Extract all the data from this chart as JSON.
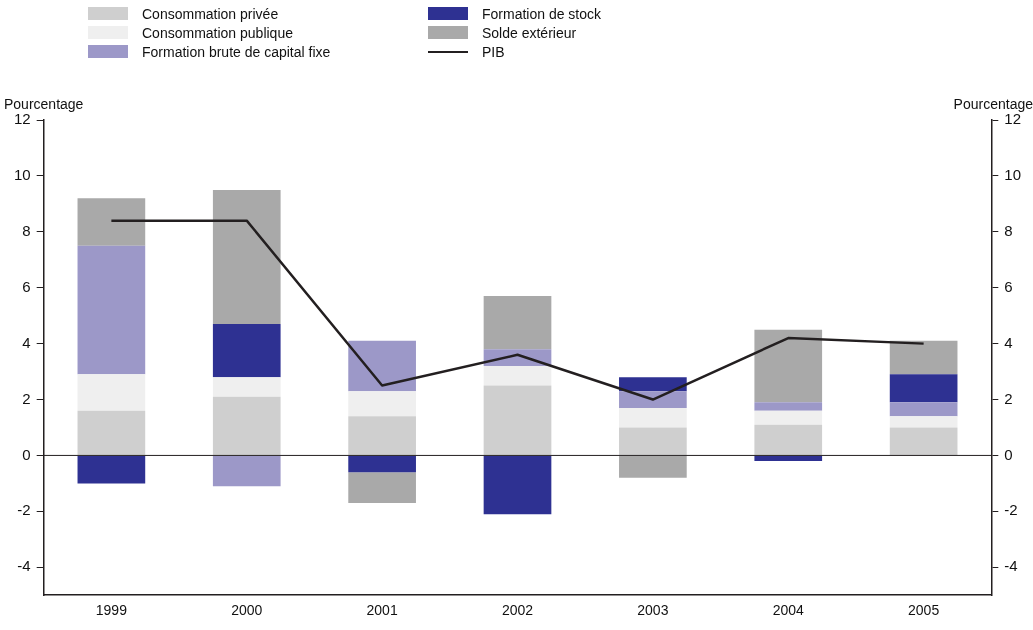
{
  "chart_data": {
    "type": "bar",
    "stacked": true,
    "categories": [
      "1999",
      "2000",
      "2001",
      "2002",
      "2003",
      "2004",
      "2005"
    ],
    "ylabel": "Pourcentage",
    "y2label": "Pourcentage",
    "ylim": [
      -5,
      12
    ],
    "yticks": [
      -4,
      -2,
      0,
      2,
      4,
      6,
      8,
      10,
      12
    ],
    "y2lim": [
      -5,
      12
    ],
    "y2ticks": [
      -4,
      -2,
      0,
      2,
      4,
      6,
      8,
      10,
      12
    ],
    "grid": false,
    "legend": "top",
    "ref_lines": [
      {
        "axis": "y",
        "value": 0,
        "color": "#231f20"
      }
    ],
    "series": [
      {
        "name": "Consommation privée",
        "color": "#cfcfcf",
        "values": [
          1.6,
          2.1,
          1.4,
          2.5,
          1.0,
          1.1,
          1.0
        ]
      },
      {
        "name": "Consommation publique",
        "color": "#efefef",
        "values": [
          1.3,
          0.7,
          0.9,
          0.7,
          0.7,
          0.5,
          0.4
        ]
      },
      {
        "name": "Formation brute de capital fixe",
        "color": "#9c98c8",
        "values": [
          4.6,
          -1.1,
          1.8,
          0.6,
          0.6,
          0.3,
          0.5
        ]
      },
      {
        "name": "Formation de stock",
        "color": "#2e3192",
        "values": [
          -1.0,
          1.9,
          -0.6,
          -2.1,
          0.5,
          -0.2,
          1.0
        ]
      },
      {
        "name": "Solde extérieur",
        "color": "#a9a9a9",
        "values": [
          1.7,
          4.8,
          -1.1,
          1.9,
          -0.8,
          2.6,
          1.2
        ]
      },
      {
        "name": "PIB",
        "type": "line",
        "color": "#231f20",
        "values": [
          8.4,
          8.4,
          2.5,
          3.6,
          2.0,
          4.2,
          4.0
        ]
      }
    ]
  }
}
